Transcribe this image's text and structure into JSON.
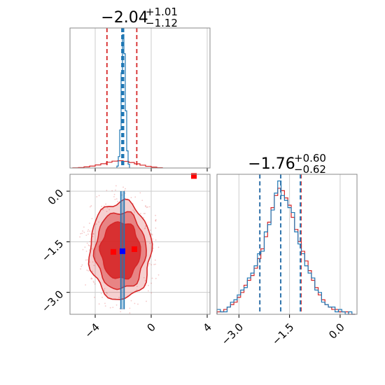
{
  "chart_data": [
    {
      "type": "histogram",
      "panel": "top-left",
      "param_index": 0,
      "title": {
        "median": "−2.04",
        "plus": "+1.01",
        "minus": "−1.12"
      },
      "xlim": [
        -5.8,
        4.2
      ],
      "xticks": [
        -4,
        0,
        4
      ],
      "grid": true,
      "series": [
        {
          "color": "#d62728",
          "bins": [
            -5.6,
            -5.2,
            -4.8,
            -4.4,
            -4.0,
            -3.6,
            -3.2,
            -2.8,
            -2.4,
            -2.0,
            -1.6,
            -1.2,
            -0.8,
            -0.4,
            0.0,
            0.4,
            0.8
          ],
          "counts": [
            0.2,
            0.5,
            1.2,
            2.0,
            3.2,
            4.5,
            6.0,
            7.2,
            7.6,
            7.0,
            5.8,
            4.4,
            3.0,
            1.8,
            0.9,
            0.3
          ]
        },
        {
          "color": "#1f77b4",
          "bins": [
            -2.45,
            -2.35,
            -2.25,
            -2.15,
            -2.05,
            -1.95,
            -1.85,
            -1.75,
            -1.65,
            -1.55
          ],
          "counts": [
            2,
            12,
            40,
            100,
            140,
            120,
            60,
            18,
            4
          ]
        }
      ],
      "quantile_lines": [
        {
          "color": "#d62728",
          "values": [
            -3.16,
            -2.04,
            -1.03
          ]
        },
        {
          "color": "#1f77b4",
          "values": [
            -2.1,
            -2.04,
            -1.97
          ]
        }
      ]
    },
    {
      "type": "histogram",
      "panel": "bottom-right",
      "param_index": 1,
      "title": {
        "median": "−1.76",
        "plus": "+0.60",
        "minus": "−0.62"
      },
      "xlim": [
        -3.65,
        0.5
      ],
      "xticks": [
        -3.0,
        -1.5,
        0.0
      ],
      "grid": true,
      "series": [
        {
          "color": "#d62728",
          "bins": [
            -3.65,
            -3.55,
            -3.45,
            -3.35,
            -3.25,
            -3.15,
            -3.05,
            -2.95,
            -2.85,
            -2.75,
            -2.65,
            -2.55,
            -2.45,
            -2.35,
            -2.25,
            -2.15,
            -2.05,
            -1.95,
            -1.85,
            -1.75,
            -1.65,
            -1.55,
            -1.45,
            -1.35,
            -1.25,
            -1.15,
            -1.05,
            -0.95,
            -0.85,
            -0.75,
            -0.65,
            -0.55,
            -0.45,
            -0.35,
            -0.25,
            -0.15,
            -0.05,
            0.05,
            0.15,
            0.25,
            0.35,
            0.45
          ],
          "counts": [
            1,
            1,
            2,
            3,
            4,
            5,
            7,
            9,
            12,
            14,
            16,
            19,
            23,
            27,
            32,
            38,
            44,
            49,
            52,
            51,
            48,
            45,
            40,
            35,
            30,
            26,
            22,
            18,
            14,
            11,
            8,
            6,
            4,
            3,
            2,
            2,
            1,
            1,
            1,
            0,
            0
          ]
        },
        {
          "color": "#1f77b4",
          "bins": [
            -3.65,
            -3.55,
            -3.45,
            -3.35,
            -3.25,
            -3.15,
            -3.05,
            -2.95,
            -2.85,
            -2.75,
            -2.65,
            -2.55,
            -2.45,
            -2.35,
            -2.25,
            -2.15,
            -2.05,
            -1.95,
            -1.85,
            -1.75,
            -1.65,
            -1.55,
            -1.45,
            -1.35,
            -1.25,
            -1.15,
            -1.05,
            -0.95,
            -0.85,
            -0.75,
            -0.65,
            -0.55,
            -0.45,
            -0.35,
            -0.25,
            -0.15,
            -0.05,
            0.05,
            0.15,
            0.25,
            0.35,
            0.45
          ],
          "counts": [
            2,
            1,
            1,
            3,
            5,
            6,
            8,
            10,
            11,
            15,
            17,
            20,
            25,
            26,
            34,
            37,
            43,
            50,
            55,
            49,
            47,
            44,
            42,
            34,
            29,
            25,
            20,
            17,
            15,
            10,
            9,
            5,
            4,
            3,
            3,
            1,
            2,
            1,
            0,
            1,
            0
          ]
        }
      ],
      "quantile_lines": [
        {
          "color": "#d62728",
          "values": [
            -2.38,
            -1.76,
            -1.16
          ]
        },
        {
          "color": "#1f77b4",
          "values": [
            -2.38,
            -1.76,
            -1.18
          ]
        }
      ]
    },
    {
      "type": "contour",
      "panel": "bottom-left",
      "xlim": [
        -5.8,
        4.2
      ],
      "ylim": [
        -3.65,
        0.5
      ],
      "xticks": [
        -4,
        0,
        4
      ],
      "yticks": [
        0.0,
        -1.5,
        -3.0
      ],
      "grid": true,
      "red_contour": {
        "center": [
          -2.2,
          -1.76
        ],
        "levels": [
          {
            "rx": 2.2,
            "ry": 1.45,
            "alpha": 0.22
          },
          {
            "rx": 1.8,
            "ry": 1.15,
            "alpha": 0.45
          },
          {
            "rx": 1.4,
            "ry": 0.85,
            "alpha": 0.9
          }
        ],
        "color": "#d62728"
      },
      "blue_band": {
        "x": -2.05,
        "half_width": 0.12,
        "y_range": [
          -3.5,
          0.0
        ],
        "color": "#1f77b4"
      },
      "markers": [
        {
          "x": -2.05,
          "y": -1.78,
          "color": "#0000ff",
          "shape": "square"
        },
        {
          "x": -2.7,
          "y": -1.8,
          "color": "#ff0000",
          "shape": "square"
        },
        {
          "x": -1.2,
          "y": -1.72,
          "color": "#ff0000",
          "shape": "square"
        },
        {
          "x": 3.05,
          "y": 0.45,
          "color": "#ff0000",
          "shape": "square"
        }
      ],
      "scatter_color": "#d62728"
    }
  ]
}
